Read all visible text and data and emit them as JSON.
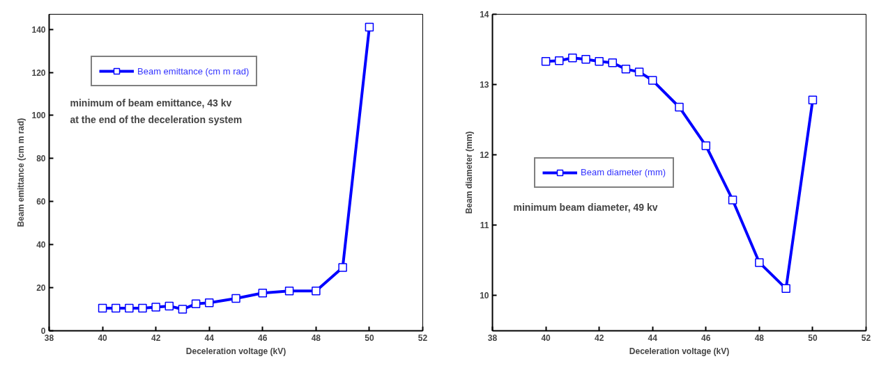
{
  "chart_data": [
    {
      "type": "line",
      "xlabel": "Deceleration voltage (kV)",
      "ylabel": "Beam emittance (cm m rad)",
      "x": [
        40,
        40.5,
        41,
        41.5,
        42,
        42.5,
        43,
        43.5,
        44,
        45,
        46,
        47,
        48,
        49,
        50
      ],
      "series": [
        {
          "name": "Beam emittance (cm m rad)",
          "color": "#0000ff",
          "values": [
            10.5,
            10.5,
            10.5,
            10.5,
            11,
            11.5,
            10,
            12.5,
            13,
            15,
            17.5,
            18.5,
            18.5,
            29.4,
            141
          ]
        }
      ],
      "xlim": [
        38,
        52
      ],
      "xticks": [
        38,
        40,
        42,
        44,
        46,
        48,
        50,
        52
      ],
      "ylim": [
        0,
        147
      ],
      "yticks": [
        0,
        20,
        40,
        60,
        80,
        100,
        120,
        140
      ],
      "marker": "square",
      "legend": "top left",
      "grid": false,
      "annotations": [
        "minimum of beam emittance, 43 kv",
        "at the end of the deceleration system"
      ]
    },
    {
      "type": "line",
      "xlabel": "Deceleration voltage (kV)",
      "ylabel": "Beam diameter (mm)",
      "x": [
        40,
        40.5,
        41,
        41.5,
        42,
        42.5,
        43,
        43.5,
        44,
        45,
        46,
        47,
        48,
        49,
        50
      ],
      "series": [
        {
          "name": "Beam diameter (mm)",
          "color": "#0000ff",
          "values": [
            13.33,
            13.34,
            13.38,
            13.36,
            13.33,
            13.31,
            13.22,
            13.18,
            13.06,
            12.68,
            12.13,
            11.36,
            10.47,
            10.1,
            12.78
          ]
        }
      ],
      "xlim": [
        38,
        52
      ],
      "xticks": [
        38,
        40,
        42,
        44,
        46,
        48,
        50,
        52
      ],
      "ylim": [
        9.5,
        14
      ],
      "yticks": [
        10,
        11,
        12,
        13,
        14
      ],
      "marker": "square",
      "legend": "left",
      "grid": false,
      "annotations": [
        "minimum beam diameter, 49 kv"
      ]
    }
  ]
}
